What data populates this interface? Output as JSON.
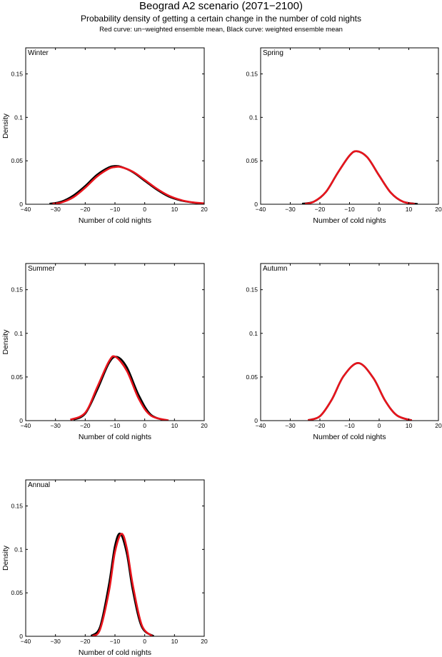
{
  "figure": {
    "title": "Beograd A2 scenario (2071−2100)",
    "subtitle": "Probability density of getting a certain change in the number of cold nights",
    "caption": "Red curve: un−weighted ensemble mean, Black curve: weighted ensemble mean"
  },
  "colors": {
    "unweighted": "#e8141c",
    "weighted": "#000000"
  },
  "chart_data": [
    {
      "type": "line",
      "title": "Winter",
      "xlabel": "Number of cold nights",
      "ylabel": "Density",
      "xlim": [
        -40,
        20
      ],
      "ylim": [
        0,
        0.18
      ],
      "xticks": [
        -40,
        -30,
        -20,
        -10,
        0,
        10,
        20
      ],
      "xtick_labels": [
        "−40",
        "−30",
        "−20",
        "−10",
        "0",
        "10",
        "20"
      ],
      "yticks": [
        0,
        0.05,
        0.1,
        0.15
      ],
      "ytick_labels": [
        "0",
        "0.05",
        "0.1",
        "0.15"
      ],
      "series": [
        {
          "name": "weighted ensemble mean",
          "color": "black",
          "peak_x": -10,
          "peak_y": 0.044,
          "range": [
            -32,
            20
          ],
          "x": [
            -32,
            -28,
            -24,
            -20,
            -16,
            -12,
            -10,
            -8,
            -4,
            0,
            4,
            8,
            12,
            16,
            20
          ],
          "y": [
            0.0005,
            0.003,
            0.01,
            0.021,
            0.034,
            0.0425,
            0.044,
            0.0432,
            0.037,
            0.027,
            0.017,
            0.009,
            0.0045,
            0.002,
            0.0008
          ]
        },
        {
          "name": "un-weighted ensemble mean",
          "color": "red",
          "peak_x": -9.5,
          "peak_y": 0.043,
          "range": [
            -31,
            20
          ],
          "x": [
            -31,
            -28,
            -24,
            -20,
            -16,
            -12,
            -10,
            -8,
            -4,
            0,
            4,
            8,
            12,
            16,
            20
          ],
          "y": [
            0.0005,
            0.002,
            0.008,
            0.019,
            0.032,
            0.041,
            0.0428,
            0.0428,
            0.0375,
            0.028,
            0.018,
            0.01,
            0.005,
            0.0022,
            0.001
          ]
        }
      ]
    },
    {
      "type": "line",
      "title": "Spring",
      "xlabel": "Number of cold nights",
      "ylabel": "",
      "xlim": [
        -40,
        20
      ],
      "ylim": [
        0,
        0.18
      ],
      "xticks": [
        -40,
        -30,
        -20,
        -10,
        0,
        10,
        20
      ],
      "xtick_labels": [
        "−40",
        "−30",
        "−20",
        "−10",
        "0",
        "10",
        "20"
      ],
      "yticks": [
        0,
        0.05,
        0.1,
        0.15
      ],
      "ytick_labels": [
        "0",
        "0.05",
        "0.1",
        "0.15"
      ],
      "series": [
        {
          "name": "weighted ensemble mean",
          "color": "black",
          "peak_x": -7.5,
          "peak_y": 0.061,
          "range": [
            -26,
            13
          ],
          "x": [
            -26,
            -22,
            -18,
            -14,
            -10,
            -7.5,
            -4,
            0,
            4,
            8,
            13
          ],
          "y": [
            0.0005,
            0.003,
            0.014,
            0.036,
            0.056,
            0.061,
            0.054,
            0.033,
            0.013,
            0.003,
            0.0003
          ]
        },
        {
          "name": "un-weighted ensemble mean",
          "color": "red",
          "peak_x": -7.5,
          "peak_y": 0.061,
          "range": [
            -25,
            12
          ],
          "x": [
            -25,
            -22,
            -18,
            -14,
            -10,
            -7.5,
            -4,
            0,
            4,
            8,
            12
          ],
          "y": [
            0.0005,
            0.003,
            0.014,
            0.036,
            0.056,
            0.061,
            0.054,
            0.033,
            0.013,
            0.003,
            0.0004
          ]
        }
      ]
    },
    {
      "type": "line",
      "title": "Summer",
      "xlabel": "Number of cold nights",
      "ylabel": "Density",
      "xlim": [
        -40,
        20
      ],
      "ylim": [
        0,
        0.18
      ],
      "xticks": [
        -40,
        -30,
        -20,
        -10,
        0,
        10,
        20
      ],
      "xtick_labels": [
        "−40",
        "−30",
        "−20",
        "−10",
        "0",
        "10",
        "20"
      ],
      "yticks": [
        0,
        0.05,
        0.1,
        0.15
      ],
      "ytick_labels": [
        "0",
        "0.05",
        "0.1",
        "0.15"
      ],
      "series": [
        {
          "name": "weighted ensemble mean",
          "color": "black",
          "peak_x": -9.3,
          "peak_y": 0.073,
          "range": [
            -24,
            7
          ],
          "x": [
            -24,
            -20,
            -16,
            -12,
            -9.3,
            -6,
            -2,
            2,
            7
          ],
          "y": [
            0.001,
            0.008,
            0.035,
            0.066,
            0.073,
            0.061,
            0.029,
            0.007,
            0.0002
          ]
        },
        {
          "name": "un-weighted ensemble mean",
          "color": "red",
          "peak_x": -9.8,
          "peak_y": 0.073,
          "range": [
            -25,
            8
          ],
          "x": [
            -25,
            -20,
            -16,
            -12,
            -9.8,
            -6,
            -2,
            2,
            8
          ],
          "y": [
            0.001,
            0.009,
            0.038,
            0.068,
            0.073,
            0.057,
            0.025,
            0.006,
            0.0002
          ]
        }
      ]
    },
    {
      "type": "line",
      "title": "Autumn",
      "xlabel": "Number of cold nights",
      "ylabel": "",
      "xlim": [
        -40,
        20
      ],
      "ylim": [
        0,
        0.18
      ],
      "xticks": [
        -40,
        -30,
        -20,
        -10,
        0,
        10,
        20
      ],
      "xtick_labels": [
        "−40",
        "−30",
        "−20",
        "−10",
        "0",
        "10",
        "20"
      ],
      "yticks": [
        0,
        0.05,
        0.1,
        0.15
      ],
      "ytick_labels": [
        "0",
        "0.05",
        "0.1",
        "0.15"
      ],
      "series": [
        {
          "name": "weighted ensemble mean",
          "color": "black",
          "peak_x": -7,
          "peak_y": 0.066,
          "range": [
            -24,
            11
          ],
          "x": [
            -24,
            -20,
            -16,
            -12,
            -7,
            -2,
            2,
            6,
            11
          ],
          "y": [
            0.0005,
            0.005,
            0.024,
            0.051,
            0.066,
            0.049,
            0.023,
            0.006,
            0.0003
          ]
        },
        {
          "name": "un-weighted ensemble mean",
          "color": "red",
          "peak_x": -7,
          "peak_y": 0.066,
          "range": [
            -24,
            11
          ],
          "x": [
            -24,
            -20,
            -16,
            -12,
            -7,
            -2,
            2,
            6,
            11
          ],
          "y": [
            0.0005,
            0.005,
            0.024,
            0.051,
            0.066,
            0.049,
            0.023,
            0.006,
            0.0003
          ]
        }
      ]
    },
    {
      "type": "line",
      "title": "Annual",
      "xlabel": "Number of cold nights",
      "ylabel": "Density",
      "xlim": [
        -40,
        20
      ],
      "ylim": [
        0,
        0.18
      ],
      "xticks": [
        -40,
        -30,
        -20,
        -10,
        0,
        10,
        20
      ],
      "xtick_labels": [
        "−40",
        "−30",
        "−20",
        "−10",
        "0",
        "10",
        "20"
      ],
      "yticks": [
        0,
        0.05,
        0.1,
        0.15
      ],
      "ytick_labels": [
        "0",
        "0.05",
        "0.1",
        "0.15"
      ],
      "series": [
        {
          "name": "weighted ensemble mean",
          "color": "black",
          "peak_x": -8.2,
          "peak_y": 0.118,
          "range": [
            -18,
            3
          ],
          "x": [
            -18,
            -15,
            -12,
            -10,
            -8.2,
            -6,
            -4,
            -1,
            3
          ],
          "y": [
            0.0005,
            0.011,
            0.06,
            0.104,
            0.118,
            0.095,
            0.053,
            0.011,
            0.0002
          ]
        },
        {
          "name": "un-weighted ensemble mean",
          "color": "red",
          "peak_x": -7.8,
          "peak_y": 0.118,
          "range": [
            -17.5,
            2.5
          ],
          "x": [
            -17.5,
            -15,
            -12,
            -10,
            -7.8,
            -6,
            -4,
            -1,
            2.5
          ],
          "y": [
            0.0003,
            0.008,
            0.052,
            0.097,
            0.118,
            0.101,
            0.059,
            0.013,
            0.0002
          ]
        }
      ]
    }
  ]
}
